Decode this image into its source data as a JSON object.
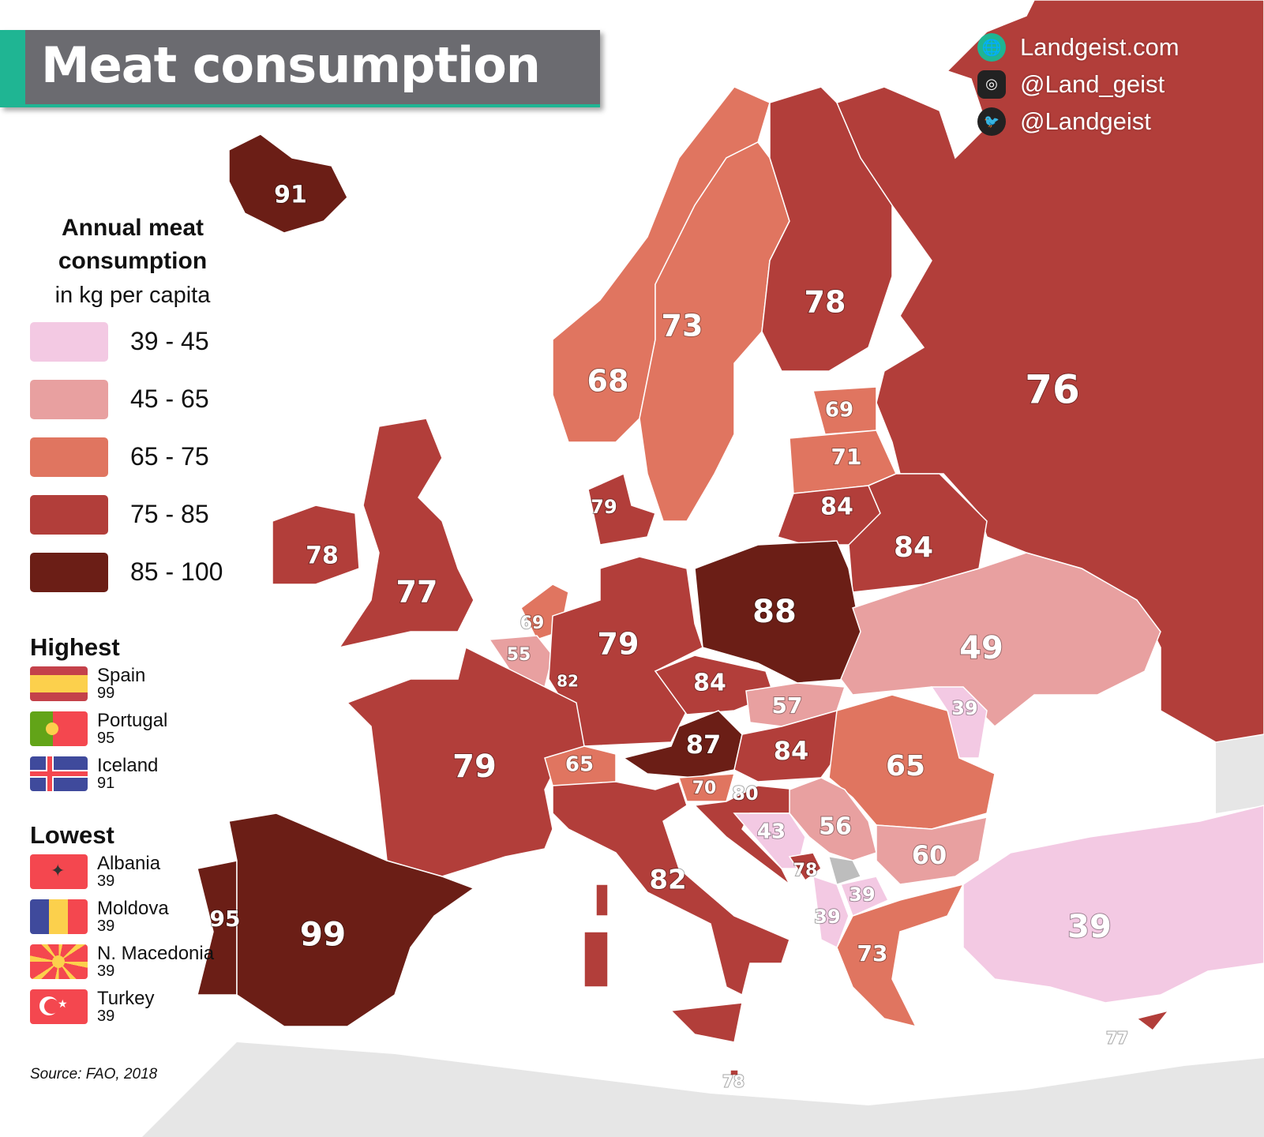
{
  "title": "Meat consumption",
  "social": [
    {
      "icon": "globe-icon",
      "text": "Landgeist.com",
      "color": "#1fb593"
    },
    {
      "icon": "instagram-icon",
      "text": "@Land_geist",
      "color": "#222222"
    },
    {
      "icon": "twitter-icon",
      "text": "@Landgeist",
      "color": "#222222"
    }
  ],
  "legend": {
    "title": "Annual meat consumption",
    "subtitle": "in kg per capita",
    "bins": [
      {
        "label": "39 - 45",
        "min": 39,
        "max": 45,
        "color": "#f3c9e3"
      },
      {
        "label": "45 - 65",
        "min": 45,
        "max": 65,
        "color": "#e8a0a0"
      },
      {
        "label": "65 - 75",
        "min": 65,
        "max": 75,
        "color": "#e07560"
      },
      {
        "label": "75 - 85",
        "min": 75,
        "max": 85,
        "color": "#b23e3a"
      },
      {
        "label": "85 - 100",
        "min": 85,
        "max": 100,
        "color": "#6b1e16"
      }
    ]
  },
  "highest": {
    "title": "Highest",
    "items": [
      {
        "name": "Spain",
        "value": "99",
        "flag": "spain"
      },
      {
        "name": "Portugal",
        "value": "95",
        "flag": "portugal"
      },
      {
        "name": "Iceland",
        "value": "91",
        "flag": "iceland"
      }
    ]
  },
  "lowest": {
    "title": "Lowest",
    "items": [
      {
        "name": "Albania",
        "value": "39",
        "flag": "albania"
      },
      {
        "name": "Moldova",
        "value": "39",
        "flag": "moldova"
      },
      {
        "name": "N. Macedonia",
        "value": "39",
        "flag": "north-macedonia"
      },
      {
        "name": "Turkey",
        "value": "39",
        "flag": "turkey"
      }
    ]
  },
  "source": "Source: FAO, 2018",
  "map": {
    "no_data_color": "#bdbdbd",
    "land_outside_color": "#e6e6e6",
    "values": [
      91,
      68,
      73,
      78,
      76,
      69,
      71,
      84,
      84,
      78,
      77,
      79,
      69,
      55,
      82,
      79,
      88,
      49,
      84,
      57,
      39,
      79,
      65,
      87,
      84,
      65,
      70,
      80,
      43,
      56,
      60,
      78,
      39,
      39,
      73,
      39,
      95,
      99,
      82,
      77,
      78
    ]
  }
}
